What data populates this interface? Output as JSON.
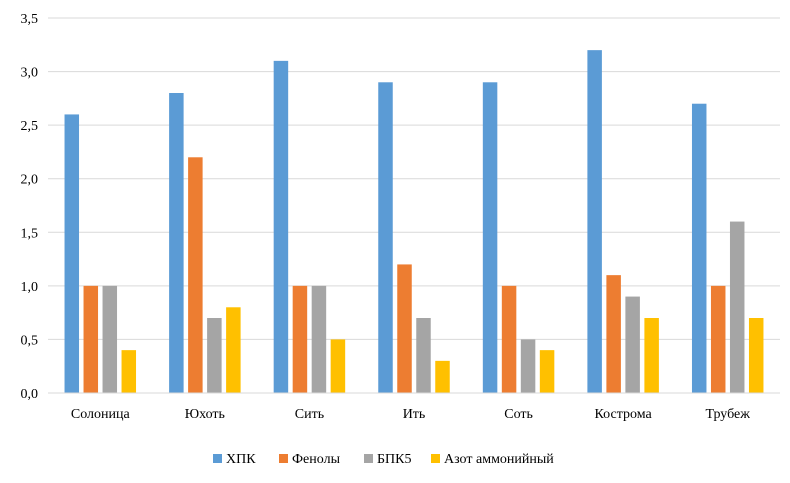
{
  "chart_data": {
    "type": "bar",
    "title": "",
    "xlabel": "",
    "ylabel": "",
    "categories": [
      "Солоница",
      "Юхоть",
      "Сить",
      "Ить",
      "Соть",
      "Кострома",
      "Трубеж"
    ],
    "series": [
      {
        "name": "ХПК",
        "color": "#5b9bd5",
        "values": [
          2.6,
          2.8,
          3.1,
          2.9,
          2.9,
          3.2,
          2.7
        ]
      },
      {
        "name": "Фенолы",
        "color": "#ed7d31",
        "values": [
          1.0,
          2.2,
          1.0,
          1.2,
          1.0,
          1.1,
          1.0
        ]
      },
      {
        "name": "БПК5",
        "color": "#a5a5a5",
        "values": [
          1.0,
          0.7,
          1.0,
          0.7,
          0.5,
          0.9,
          1.6
        ]
      },
      {
        "name": "Азот аммонийный",
        "color": "#ffc000",
        "values": [
          0.4,
          0.8,
          0.5,
          0.3,
          0.4,
          0.7,
          0.7
        ]
      }
    ],
    "ylim": [
      0,
      3.5
    ],
    "yticks": [
      "0,0",
      "0,5",
      "1,0",
      "1,5",
      "2,0",
      "2,5",
      "3,0",
      "3,5"
    ],
    "ytick_values": [
      0,
      0.5,
      1.0,
      1.5,
      2.0,
      2.5,
      3.0,
      3.5
    ],
    "grid": true,
    "legend_position": "bottom"
  }
}
